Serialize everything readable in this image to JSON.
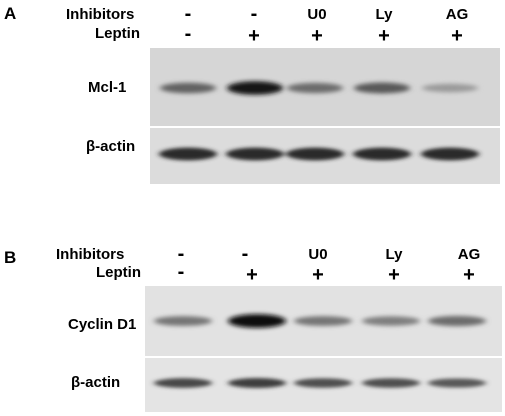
{
  "panel_a": {
    "letter": "A",
    "row1_label": "Inhibitors",
    "row2_label": "Leptin",
    "inhibitors": [
      "-",
      "-",
      "U0",
      "Ly",
      "AG"
    ],
    "leptin": [
      "-",
      "+",
      "+",
      "+",
      "+"
    ],
    "blot1_label": "Mcl-1",
    "blot2_label": "β-actin",
    "blot1_intensity": [
      0.55,
      0.95,
      0.5,
      0.6,
      0.25
    ],
    "blot2_intensity": [
      0.85,
      0.85,
      0.85,
      0.85,
      0.85
    ]
  },
  "panel_b": {
    "letter": "B",
    "row1_label": "Inhibitors",
    "row2_label": "Leptin",
    "inhibitors": [
      "-",
      "-",
      "U0",
      "Ly",
      "AG"
    ],
    "leptin": [
      "-",
      "+",
      "+",
      "+",
      "+"
    ],
    "blot1_label": "Cyclin D1",
    "blot2_label": "β-actin",
    "blot1_intensity": [
      0.45,
      1.0,
      0.45,
      0.4,
      0.5
    ],
    "blot2_intensity": [
      0.7,
      0.75,
      0.65,
      0.65,
      0.6
    ]
  }
}
